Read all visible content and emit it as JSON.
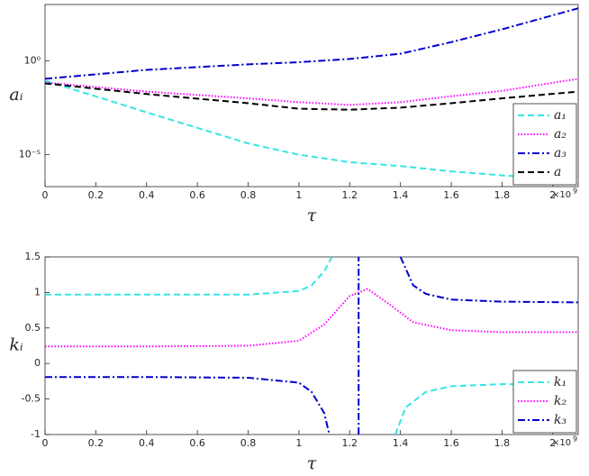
{
  "chart_data": [
    {
      "type": "line",
      "xlabel": "τ",
      "ylabel": "aᵢ",
      "x_multiplier": "×10",
      "x_multiplier_exp": "9",
      "log_y": true,
      "legend": "lower right",
      "x": [
        0,
        400000000,
        800000000,
        1000000000,
        1200000000,
        1400000000,
        1600000000,
        1800000000,
        2100000000
      ],
      "series": [
        {
          "name": "a₁",
          "color": "#33e6e6",
          "dash": "dashed",
          "values": [
            0.09,
            0.0018,
            4e-05,
            1e-05,
            4e-06,
            2.5e-06,
            1.3e-06,
            8e-07,
            4.5e-07
          ]
        },
        {
          "name": "a₂",
          "color": "#ff00ff",
          "dash": "dotted",
          "values": [
            0.07,
            0.023,
            0.01,
            0.0063,
            0.0045,
            0.0063,
            0.013,
            0.025,
            0.11
          ]
        },
        {
          "name": "a₃",
          "color": "#0000cc",
          "dash": "dashdot",
          "values": [
            0.11,
            0.33,
            0.65,
            0.85,
            1.26,
            2.4,
            10,
            48,
            630
          ]
        },
        {
          "name": "a",
          "color": "#000000",
          "dash": "dashed",
          "values": [
            0.063,
            0.017,
            0.0055,
            0.0028,
            0.0025,
            0.0032,
            0.0055,
            0.01,
            0.023
          ]
        }
      ],
      "xlim": [
        0,
        2100000000
      ],
      "xticks": [
        0,
        {
          "value": 200000000,
          "label": "0.2"
        },
        {
          "value": 400000000,
          "label": "0.4"
        },
        {
          "value": 600000000,
          "label": "0.6"
        },
        {
          "value": 800000000,
          "label": "0.8"
        },
        {
          "value": 1000000000,
          "label": "1"
        },
        {
          "value": 1200000000,
          "label": "1.2"
        },
        {
          "value": 1400000000,
          "label": "1.4"
        },
        {
          "value": 1600000000,
          "label": "1.6"
        },
        {
          "value": 1800000000,
          "label": "1.8"
        },
        {
          "value": 2000000000,
          "label": "2"
        }
      ],
      "ylim": [
        2e-07,
        1000
      ],
      "yticks": [
        {
          "value": 1e-05,
          "label": "10⁻⁵"
        },
        {
          "value": 1,
          "label": "10⁰"
        }
      ]
    },
    {
      "type": "line",
      "xlabel": "τ",
      "ylabel": "kᵢ",
      "x_multiplier": "×10",
      "x_multiplier_exp": "9",
      "log_y": false,
      "legend": "lower right",
      "series": [
        {
          "name": "k₁",
          "color": "#33e6e6",
          "dash": "dashed",
          "x": [
            0,
            400000000,
            800000000,
            1000000000,
            1050000000,
            1100000000,
            1130000000,
            1200000000,
            1380000000,
            1420000000,
            1500000000,
            1600000000,
            1800000000,
            2100000000
          ],
          "values": [
            0.97,
            0.97,
            0.97,
            1.02,
            1.1,
            1.3,
            1.5,
            null,
            -1,
            -0.62,
            -0.4,
            -0.32,
            -0.29,
            -0.29
          ]
        },
        {
          "name": "k₂",
          "color": "#ff00ff",
          "dash": "dotted",
          "x": [
            0,
            400000000,
            800000000,
            1000000000,
            1100000000,
            1200000000,
            1270000000,
            1350000000,
            1450000000,
            1600000000,
            1800000000,
            2100000000
          ],
          "values": [
            0.24,
            0.24,
            0.25,
            0.32,
            0.55,
            0.95,
            1.05,
            0.85,
            0.58,
            0.47,
            0.44,
            0.44
          ]
        },
        {
          "name": "k₃",
          "color": "#0000cc",
          "dash": "dashdot",
          "x": [
            0,
            400000000,
            800000000,
            1000000000,
            1050000000,
            1100000000,
            1120000000,
            1200000000,
            1235000000,
            1235000000,
            1300000000,
            1400000000,
            1450000000,
            1500000000,
            1600000000,
            1800000000,
            2100000000
          ],
          "values": [
            -0.19,
            -0.19,
            -0.2,
            -0.27,
            -0.4,
            -0.7,
            -1,
            null,
            -1,
            1.5,
            null,
            1.5,
            1.1,
            0.98,
            0.9,
            0.87,
            0.86
          ]
        }
      ],
      "xlim": [
        0,
        2100000000
      ],
      "xticks": [
        0,
        {
          "value": 200000000,
          "label": "0.2"
        },
        {
          "value": 400000000,
          "label": "0.4"
        },
        {
          "value": 600000000,
          "label": "0.6"
        },
        {
          "value": 800000000,
          "label": "0.8"
        },
        {
          "value": 1000000000,
          "label": "1"
        },
        {
          "value": 1200000000,
          "label": "1.2"
        },
        {
          "value": 1400000000,
          "label": "1.4"
        },
        {
          "value": 1600000000,
          "label": "1.6"
        },
        {
          "value": 1800000000,
          "label": "1.8"
        },
        {
          "value": 2000000000,
          "label": "2"
        }
      ],
      "ylim": [
        -1,
        1.5
      ],
      "yticks": [
        -1,
        -0.5,
        0,
        0.5,
        1,
        1.5
      ]
    }
  ]
}
